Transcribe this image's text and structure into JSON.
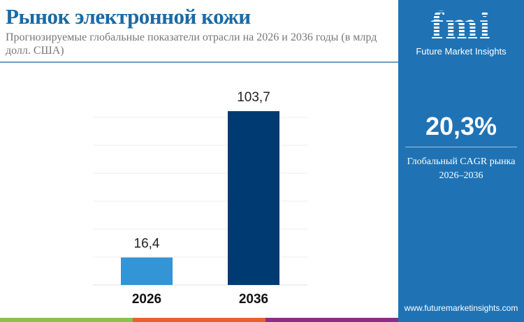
{
  "header": {
    "title": "Рынок электронной кожи",
    "subtitle": "Прогнозируемые глобальные показатели отрасли на 2026 и 2036 годы (в млрд долл. США)"
  },
  "panel": {
    "logo_text": "fmi",
    "brand": "Future Market Insights",
    "cagr_value": "20,3%",
    "cagr_label": "Глобальный CAGR рынка",
    "cagr_period": "2026–2036",
    "website": "www.futuremarketinsights.com"
  },
  "colors": {
    "panel": "#1f73b5",
    "bar_2026": "#3394d6",
    "bar_2036": "#003a73",
    "stripe": [
      "#8bc34a",
      "#e8612c",
      "#8b2d8c"
    ]
  },
  "chart_data": {
    "type": "bar",
    "categories": [
      "2026",
      "2036"
    ],
    "values": [
      16.4,
      103.7
    ],
    "value_labels": [
      "16,4",
      "103,7"
    ],
    "ylim": [
      0,
      120
    ],
    "grid": true
  }
}
